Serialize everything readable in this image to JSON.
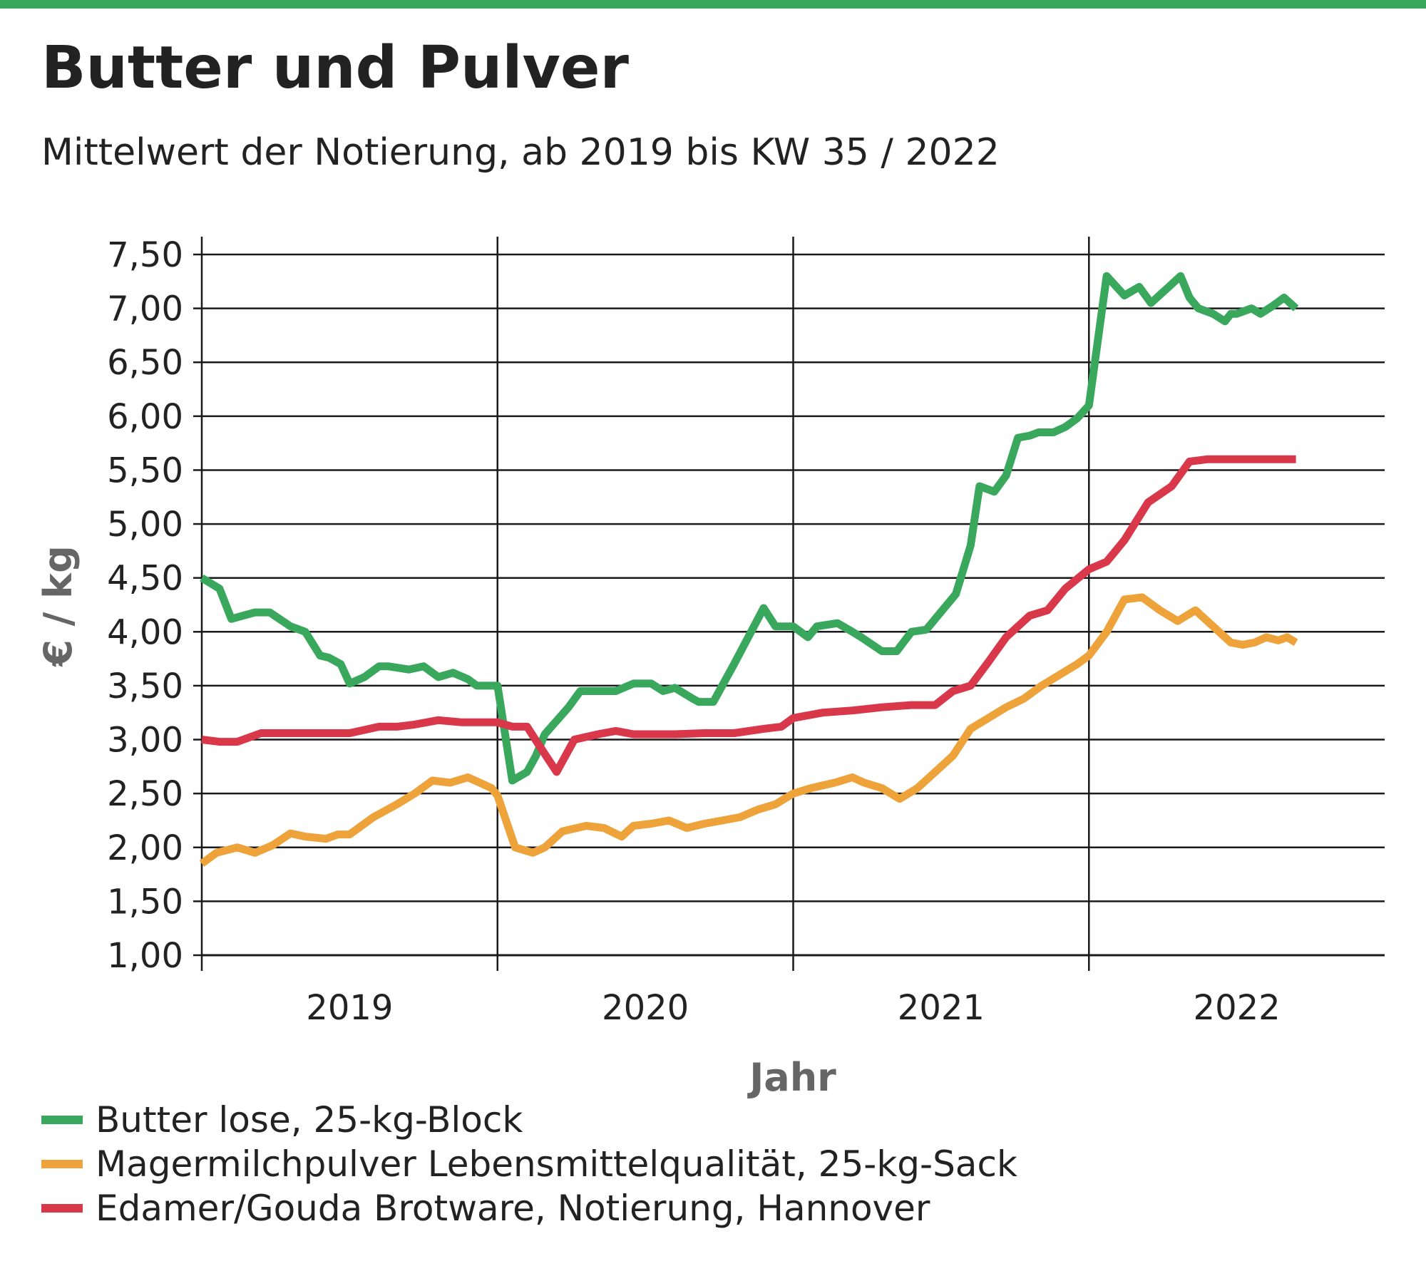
{
  "colors": {
    "accent": "#3aa85c",
    "butter": "#3aa85c",
    "mmp": "#eda23a",
    "edamer": "#d9374a"
  },
  "chart_data": {
    "type": "line",
    "title": "Butter und Pulver",
    "subtitle": "Mittelwert der Notierung, ab 2019 bis KW 35 / 2022",
    "xlabel": "Jahr",
    "ylabel": "€ / kg",
    "ylim": [
      1.0,
      7.5
    ],
    "yticks": [
      "1,00",
      "1,50",
      "2,00",
      "2,50",
      "3,00",
      "3,50",
      "4,00",
      "4,50",
      "5,00",
      "5,50",
      "6,00",
      "6,50",
      "7,00",
      "7,50"
    ],
    "xlim": [
      2019.0,
      2023.0
    ],
    "xticks": [
      "2019",
      "2020",
      "2021",
      "2022"
    ],
    "grid": true,
    "legend_position": "bottom-left",
    "series": [
      {
        "name": "Butter lose, 25-kg-Block",
        "color": "#3aa85c",
        "x": [
          2019.0,
          2019.06,
          2019.1,
          2019.18,
          2019.23,
          2019.3,
          2019.35,
          2019.4,
          2019.43,
          2019.47,
          2019.5,
          2019.55,
          2019.6,
          2019.63,
          2019.7,
          2019.75,
          2019.8,
          2019.85,
          2019.9,
          2019.93,
          2019.98,
          2020.0,
          2020.05,
          2020.1,
          2020.13,
          2020.16,
          2020.24,
          2020.28,
          2020.34,
          2020.4,
          2020.46,
          2020.52,
          2020.56,
          2020.6,
          2020.66,
          2020.68,
          2020.73,
          2020.8,
          2020.9,
          2020.94,
          2021.0,
          2021.05,
          2021.08,
          2021.15,
          2021.2,
          2021.23,
          2021.3,
          2021.35,
          2021.4,
          2021.45,
          2021.55,
          2021.6,
          2021.63,
          2021.68,
          2021.72,
          2021.76,
          2021.8,
          2021.83,
          2021.88,
          2021.92,
          2021.96,
          2022.0,
          2022.06,
          2022.12,
          2022.17,
          2022.21,
          2022.23,
          2022.27,
          2022.31,
          2022.34,
          2022.37,
          2022.42,
          2022.46,
          2022.48,
          2022.5,
          2022.55,
          2022.58,
          2022.62,
          2022.66,
          2022.68,
          2022.7
        ],
        "values": [
          4.5,
          4.4,
          4.12,
          4.18,
          4.18,
          4.05,
          4.0,
          3.78,
          3.76,
          3.7,
          3.52,
          3.58,
          3.68,
          3.68,
          3.65,
          3.68,
          3.58,
          3.62,
          3.56,
          3.5,
          3.5,
          3.5,
          2.62,
          2.7,
          2.85,
          3.05,
          3.3,
          3.45,
          3.45,
          3.45,
          3.52,
          3.52,
          3.45,
          3.48,
          3.38,
          3.35,
          3.35,
          3.7,
          4.22,
          4.05,
          4.05,
          3.95,
          4.05,
          4.08,
          4.0,
          3.95,
          3.82,
          3.82,
          4.0,
          4.02,
          4.35,
          4.8,
          5.35,
          5.3,
          5.45,
          5.8,
          5.82,
          5.85,
          5.85,
          5.9,
          5.98,
          6.1,
          7.3,
          7.12,
          7.2,
          7.05,
          7.1,
          7.2,
          7.3,
          7.1,
          7.0,
          6.95,
          6.88,
          6.95,
          6.95,
          7.0,
          6.95,
          7.02,
          7.1,
          7.05,
          7.0
        ]
      },
      {
        "name": "Magermilchpulver Lebensmittelqualität, 25-kg-Sack",
        "color": "#eda23a",
        "x": [
          2019.0,
          2019.05,
          2019.12,
          2019.18,
          2019.24,
          2019.3,
          2019.35,
          2019.42,
          2019.46,
          2019.5,
          2019.58,
          2019.66,
          2019.72,
          2019.78,
          2019.84,
          2019.9,
          2019.94,
          2019.98,
          2020.0,
          2020.06,
          2020.12,
          2020.16,
          2020.22,
          2020.3,
          2020.36,
          2020.42,
          2020.46,
          2020.52,
          2020.58,
          2020.64,
          2020.7,
          2020.76,
          2020.82,
          2020.88,
          2020.94,
          2021.0,
          2021.06,
          2021.14,
          2021.2,
          2021.24,
          2021.3,
          2021.36,
          2021.42,
          2021.48,
          2021.54,
          2021.6,
          2021.66,
          2021.72,
          2021.78,
          2021.84,
          2021.9,
          2021.96,
          2022.0,
          2022.06,
          2022.12,
          2022.18,
          2022.24,
          2022.3,
          2022.36,
          2022.42,
          2022.48,
          2022.52,
          2022.56,
          2022.6,
          2022.64,
          2022.67,
          2022.7
        ],
        "values": [
          1.85,
          1.95,
          2.0,
          1.95,
          2.02,
          2.13,
          2.1,
          2.08,
          2.12,
          2.12,
          2.28,
          2.4,
          2.5,
          2.62,
          2.6,
          2.65,
          2.6,
          2.55,
          2.48,
          2.0,
          1.95,
          2.0,
          2.15,
          2.2,
          2.18,
          2.1,
          2.2,
          2.22,
          2.25,
          2.18,
          2.22,
          2.25,
          2.28,
          2.35,
          2.4,
          2.5,
          2.55,
          2.6,
          2.65,
          2.6,
          2.55,
          2.45,
          2.55,
          2.7,
          2.85,
          3.1,
          3.2,
          3.3,
          3.38,
          3.5,
          3.6,
          3.7,
          3.78,
          4.0,
          4.3,
          4.32,
          4.2,
          4.1,
          4.2,
          4.05,
          3.9,
          3.88,
          3.9,
          3.95,
          3.92,
          3.95,
          3.9
        ]
      },
      {
        "name": "Edamer/Gouda Brotware, Notierung, Hannover",
        "color": "#d9374a",
        "x": [
          2019.0,
          2019.06,
          2019.12,
          2019.2,
          2019.3,
          2019.4,
          2019.5,
          2019.6,
          2019.66,
          2019.72,
          2019.8,
          2019.88,
          2019.94,
          2020.0,
          2020.05,
          2020.1,
          2020.14,
          2020.2,
          2020.26,
          2020.34,
          2020.4,
          2020.46,
          2020.52,
          2020.6,
          2020.7,
          2020.8,
          2020.9,
          2020.96,
          2021.0,
          2021.1,
          2021.2,
          2021.3,
          2021.4,
          2021.48,
          2021.54,
          2021.6,
          2021.66,
          2021.72,
          2021.8,
          2021.86,
          2021.92,
          2022.0,
          2022.06,
          2022.12,
          2022.2,
          2022.28,
          2022.34,
          2022.4,
          2022.46,
          2022.52,
          2022.58,
          2022.64,
          2022.7
        ],
        "values": [
          3.0,
          2.98,
          2.98,
          3.06,
          3.06,
          3.06,
          3.06,
          3.12,
          3.12,
          3.14,
          3.18,
          3.16,
          3.16,
          3.16,
          3.12,
          3.12,
          2.95,
          2.7,
          3.0,
          3.05,
          3.08,
          3.05,
          3.05,
          3.05,
          3.06,
          3.06,
          3.1,
          3.12,
          3.2,
          3.25,
          3.27,
          3.3,
          3.32,
          3.32,
          3.45,
          3.5,
          3.72,
          3.95,
          4.15,
          4.2,
          4.4,
          4.58,
          4.65,
          4.85,
          5.2,
          5.35,
          5.58,
          5.6,
          5.6,
          5.6,
          5.6,
          5.6,
          5.6
        ]
      }
    ]
  }
}
